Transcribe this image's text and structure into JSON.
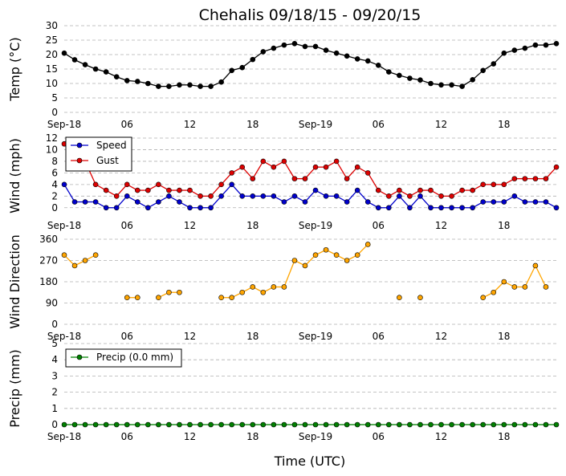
{
  "title": "Chehalis 09/18/15 - 09/20/15",
  "xlabel": "Time (UTC)",
  "x_ticks": [
    "Sep-18",
    "06",
    "12",
    "18",
    "Sep-19",
    "06",
    "12",
    "18"
  ],
  "colors": {
    "temp": "#000000",
    "speed": "#0000cc",
    "gust": "#dd0000",
    "direction": "#ffa500",
    "precip": "#008000",
    "grid": "#b0b0b0"
  },
  "chart_data": [
    {
      "type": "line",
      "ylabel": "Temp (°C)",
      "ylim": [
        0,
        30
      ],
      "yticks": [
        "0",
        "5",
        "10",
        "15",
        "20",
        "25",
        "30"
      ],
      "grid": true,
      "series": [
        {
          "values": [
            20.5,
            18.2,
            16.5,
            15,
            14,
            12.3,
            11,
            10.7,
            10,
            9,
            9,
            9.5,
            9.5,
            9,
            9,
            10.5,
            14.5,
            15.5,
            18.3,
            21,
            22.2,
            23.3,
            23.8,
            22.8,
            22.8,
            21.5,
            20.5,
            19.5,
            18.5,
            17.8,
            16.3,
            14,
            12.8,
            11.8,
            11.2,
            10,
            9.5,
            9.5,
            9,
            11.3,
            14.5,
            16.8,
            20.5,
            21.5,
            22.2,
            23.3,
            23.3,
            23.8
          ]
        }
      ]
    },
    {
      "type": "line",
      "ylabel": "Wind (mph)",
      "ylim": [
        -1,
        12
      ],
      "yticks": [
        "0",
        "2",
        "4",
        "6",
        "8",
        "10",
        "12"
      ],
      "grid": true,
      "legend": "top-left",
      "series": [
        {
          "name": "Speed",
          "values": [
            4,
            1,
            1,
            1,
            0,
            0,
            2,
            1,
            0,
            1,
            2,
            1,
            0,
            0,
            0,
            2,
            4,
            2,
            2,
            2,
            2,
            1,
            2,
            1,
            3,
            2,
            2,
            1,
            3,
            1,
            0,
            0,
            2,
            0,
            2,
            0,
            0,
            0,
            0,
            0,
            1,
            1,
            1,
            2,
            1,
            1,
            1,
            0
          ]
        },
        {
          "name": "Gust",
          "values": [
            11,
            11,
            8,
            4,
            3,
            2,
            4,
            3,
            3,
            4,
            3,
            3,
            3,
            2,
            2,
            4,
            6,
            7,
            5,
            8,
            7,
            8,
            5,
            5,
            7,
            7,
            8,
            5,
            7,
            6,
            3,
            2,
            3,
            2,
            3,
            3,
            2,
            2,
            3,
            3,
            4,
            4,
            4,
            5,
            5,
            5,
            5,
            7
          ]
        }
      ]
    },
    {
      "type": "line",
      "ylabel": "Wind Direction",
      "ylim": [
        0,
        360
      ],
      "yticks": [
        "0",
        "90",
        "180",
        "270",
        "360"
      ],
      "grid": true,
      "series": [
        {
          "values": [
            293,
            248,
            270,
            293,
            null,
            null,
            113,
            113,
            null,
            113,
            135,
            135,
            null,
            null,
            null,
            113,
            113,
            135,
            158,
            135,
            158,
            158,
            270,
            248,
            293,
            315,
            293,
            270,
            293,
            338,
            null,
            null,
            113,
            null,
            113,
            null,
            null,
            null,
            null,
            null,
            113,
            135,
            180,
            158,
            158,
            248,
            158,
            null
          ]
        }
      ]
    },
    {
      "type": "line",
      "ylabel": "Precip (mm)",
      "ylim": [
        0,
        5
      ],
      "yticks": [
        "0",
        "1",
        "2",
        "3",
        "4",
        "5"
      ],
      "grid": true,
      "legend": "top-left",
      "series": [
        {
          "name": "Precip (0.0 mm)",
          "values": [
            0,
            0,
            0,
            0,
            0,
            0,
            0,
            0,
            0,
            0,
            0,
            0,
            0,
            0,
            0,
            0,
            0,
            0,
            0,
            0,
            0,
            0,
            0,
            0,
            0,
            0,
            0,
            0,
            0,
            0,
            0,
            0,
            0,
            0,
            0,
            0,
            0,
            0,
            0,
            0,
            0,
            0,
            0,
            0,
            0,
            0,
            0,
            0
          ]
        }
      ]
    }
  ]
}
